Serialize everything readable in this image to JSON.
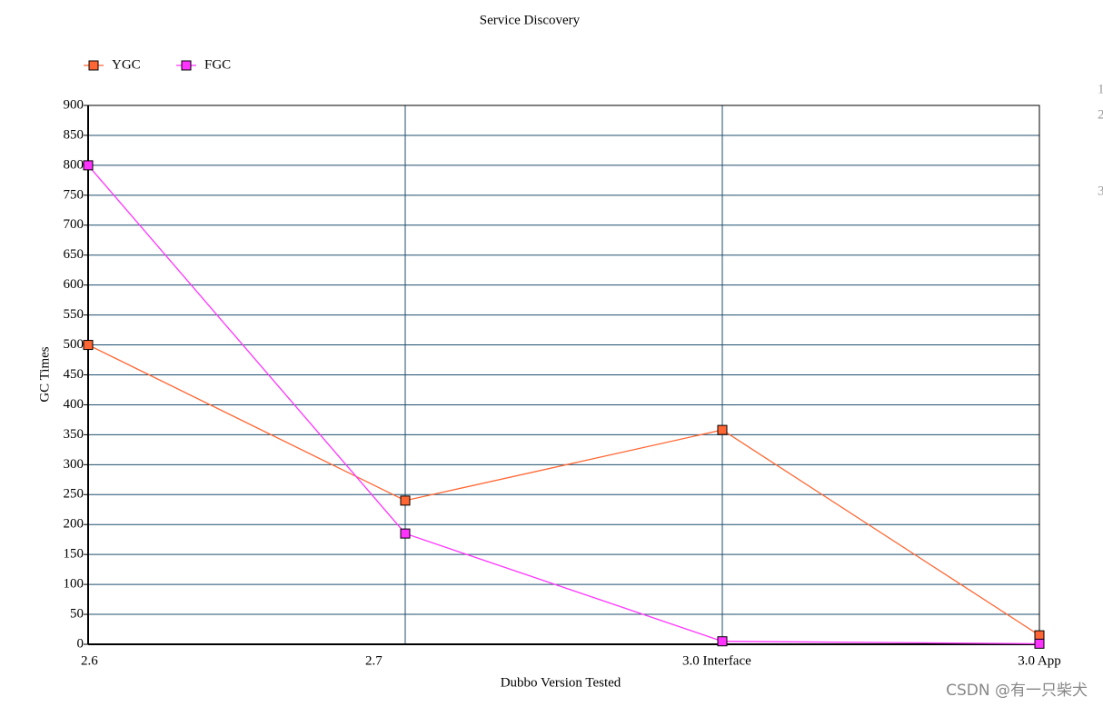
{
  "chart_data": {
    "type": "line",
    "title": "Service Discovery",
    "x_label": "Dubbo Version Tested",
    "y_label": "GC Times",
    "categories": [
      "2.6",
      "2.7",
      "3.0 Interface",
      "3.0 App"
    ],
    "series": [
      {
        "name": "YGC",
        "color": "#ff6633",
        "values": [
          500,
          240,
          358,
          15
        ]
      },
      {
        "name": "FGC",
        "color": "#ff33ff",
        "values": [
          800,
          185,
          5,
          1
        ]
      }
    ],
    "ylim": [
      0,
      900
    ],
    "yticks": [
      0,
      50,
      100,
      150,
      200,
      250,
      300,
      350,
      400,
      450,
      500,
      550,
      600,
      650,
      700,
      750,
      800,
      850,
      900
    ],
    "grid": true,
    "grid_color": "#1f4e6e",
    "legend": "top-left"
  },
  "side_numbers": [
    "1",
    "2",
    "3"
  ],
  "watermark": "CSDN @有一只柴犬"
}
